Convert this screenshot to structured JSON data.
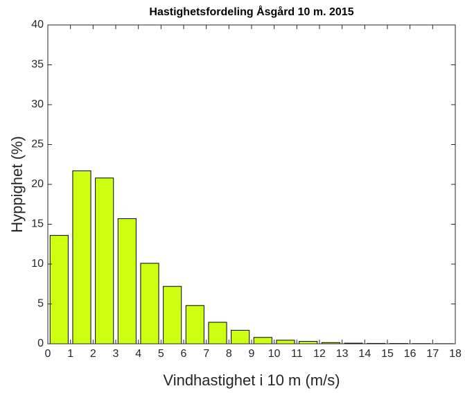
{
  "chart_data": {
    "type": "bar",
    "title": "Hastighetsfordeling Åsgård 10 m. 2015",
    "xlabel": "Vindhastighet i 10 m (m/s)",
    "ylabel": "Hyppighet (%)",
    "x": [
      0.5,
      1.5,
      2.5,
      3.5,
      4.5,
      5.5,
      6.5,
      7.5,
      8.5,
      9.5,
      10.5,
      11.5,
      12.5,
      13.5,
      14.5,
      15.5,
      16.5,
      17.5
    ],
    "values": [
      13.6,
      21.7,
      20.8,
      15.7,
      10.1,
      7.2,
      4.8,
      2.7,
      1.7,
      0.8,
      0.45,
      0.3,
      0.15,
      0.08,
      0.05,
      0.04,
      0.03,
      0.02
    ],
    "color": "#ccff11",
    "xlim": [
      0,
      18
    ],
    "xticks": [
      0,
      1,
      2,
      3,
      4,
      5,
      6,
      7,
      8,
      9,
      10,
      11,
      12,
      13,
      14,
      15,
      16,
      17,
      18
    ],
    "ylim": [
      0,
      40
    ],
    "yticks": [
      0,
      5,
      10,
      15,
      20,
      25,
      30,
      35,
      40
    ]
  }
}
